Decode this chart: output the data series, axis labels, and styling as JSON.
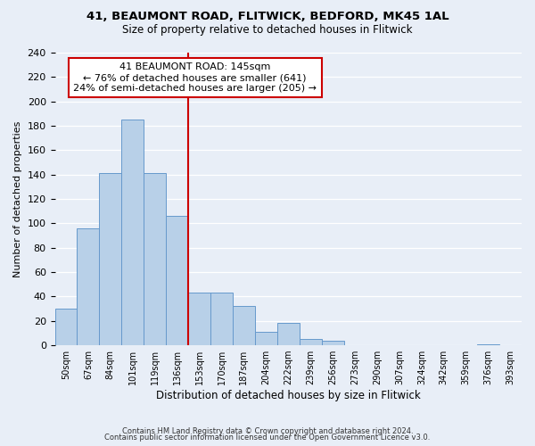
{
  "title1": "41, BEAUMONT ROAD, FLITWICK, BEDFORD, MK45 1AL",
  "title2": "Size of property relative to detached houses in Flitwick",
  "xlabel": "Distribution of detached houses by size in Flitwick",
  "ylabel": "Number of detached properties",
  "bins": [
    "50sqm",
    "67sqm",
    "84sqm",
    "101sqm",
    "119sqm",
    "136sqm",
    "153sqm",
    "170sqm",
    "187sqm",
    "204sqm",
    "222sqm",
    "239sqm",
    "256sqm",
    "273sqm",
    "290sqm",
    "307sqm",
    "324sqm",
    "342sqm",
    "359sqm",
    "376sqm",
    "393sqm"
  ],
  "counts": [
    30,
    96,
    141,
    185,
    141,
    106,
    43,
    43,
    32,
    11,
    18,
    5,
    4,
    0,
    0,
    0,
    0,
    0,
    0,
    1,
    0
  ],
  "bar_color": "#b8d0e8",
  "bar_edge_color": "#6699cc",
  "vline_color": "#cc0000",
  "annotation_title": "41 BEAUMONT ROAD: 145sqm",
  "annotation_line1": "← 76% of detached houses are smaller (641)",
  "annotation_line2": "24% of semi-detached houses are larger (205) →",
  "annotation_box_color": "#ffffff",
  "annotation_box_edge": "#cc0000",
  "footer1": "Contains HM Land Registry data © Crown copyright and database right 2024.",
  "footer2": "Contains public sector information licensed under the Open Government Licence v3.0.",
  "ylim": [
    0,
    240
  ],
  "background_color": "#e8eef7"
}
